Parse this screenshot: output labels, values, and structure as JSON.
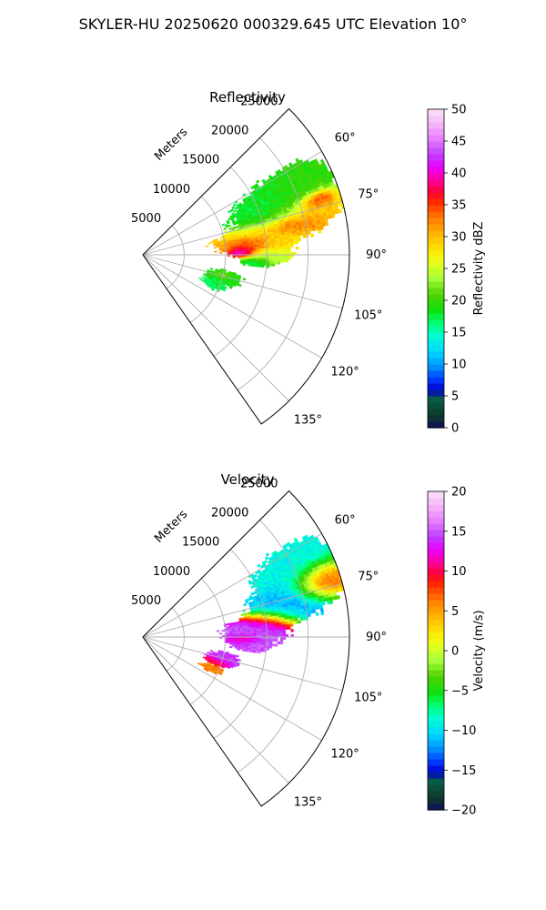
{
  "figure": {
    "suptitle": "SKYLER-HU  20250620  000329.645 UTC Elevation 10°"
  },
  "chart_data": [
    {
      "type": "heatmap",
      "title": "Reflectivity",
      "projection": "polar-sector",
      "azimuth_range_deg": [
        45,
        145
      ],
      "range_max_m": 25000,
      "range_label": "Meters",
      "range_ticks": [
        5000,
        10000,
        15000,
        20000,
        25000
      ],
      "range_tick_labels": [
        "5000",
        "10000",
        "15000",
        "20000",
        "25000"
      ],
      "azimuth_ticks": [
        60,
        75,
        90,
        105,
        120,
        135
      ],
      "azimuth_tick_labels": [
        "60°",
        "75°",
        "90°",
        "105°",
        "120°",
        "135°"
      ],
      "grid": true,
      "colorbar": {
        "label": "Reflectivity dBZ",
        "min": 0,
        "max": 50,
        "ticks": [
          0,
          5,
          10,
          15,
          20,
          25,
          30,
          35,
          40,
          45,
          50
        ],
        "tick_labels": [
          "0",
          "5",
          "10",
          "15",
          "20",
          "25",
          "30",
          "35",
          "40",
          "45",
          "50"
        ]
      },
      "features": [
        {
          "az": 69,
          "r": 17000,
          "saz": 9,
          "sr": 5000,
          "v": 18
        },
        {
          "az": 66,
          "r": 20500,
          "saz": 6,
          "sr": 3500,
          "v": 20
        },
        {
          "az": 74,
          "r": 21000,
          "saz": 4,
          "sr": 3000,
          "v": 32
        },
        {
          "az": 78,
          "r": 18500,
          "saz": 3,
          "sr": 3000,
          "v": 37
        },
        {
          "az": 72,
          "r": 22000,
          "saz": 2,
          "sr": 1500,
          "v": 44
        },
        {
          "az": 82,
          "r": 13500,
          "saz": 6,
          "sr": 4500,
          "v": 30
        },
        {
          "az": 84,
          "r": 12500,
          "saz": 3,
          "sr": 2000,
          "v": 38
        },
        {
          "az": 88,
          "r": 12000,
          "saz": 2.5,
          "sr": 1300,
          "v": 45
        },
        {
          "az": 90,
          "r": 15000,
          "saz": 3,
          "sr": 2500,
          "v": 24
        },
        {
          "az": 93,
          "r": 13500,
          "saz": 2,
          "sr": 1500,
          "v": 17
        },
        {
          "az": 105,
          "r": 10000,
          "saz": 4,
          "sr": 2000,
          "v": 19
        },
        {
          "az": 104,
          "r": 9800,
          "saz": 1.5,
          "sr": 800,
          "v": 24
        },
        {
          "az": 112,
          "r": 9000,
          "saz": 3,
          "sr": 1300,
          "v": 17
        }
      ]
    },
    {
      "type": "heatmap",
      "title": "Velocity",
      "projection": "polar-sector",
      "azimuth_range_deg": [
        45,
        145
      ],
      "range_max_m": 25000,
      "range_label": "Meters",
      "range_ticks": [
        5000,
        10000,
        15000,
        20000,
        25000
      ],
      "range_tick_labels": [
        "5000",
        "10000",
        "15000",
        "20000",
        "25000"
      ],
      "azimuth_ticks": [
        60,
        75,
        90,
        105,
        120,
        135
      ],
      "azimuth_tick_labels": [
        "60°",
        "75°",
        "90°",
        "105°",
        "120°",
        "135°"
      ],
      "grid": true,
      "colorbar": {
        "label": "Velocity (m/s)",
        "min": -20,
        "max": 20,
        "ticks": [
          -20,
          -15,
          -10,
          -5,
          0,
          5,
          10,
          15,
          20
        ],
        "tick_labels": [
          "−20",
          "−15",
          "−10",
          "−5",
          "0",
          "5",
          "10",
          "15",
          "20"
        ]
      },
      "features": [
        {
          "az": 66,
          "r": 20000,
          "saz": 8,
          "sr": 5000,
          "v": -9
        },
        {
          "az": 76,
          "r": 18000,
          "saz": 6,
          "sr": 4000,
          "v": -12
        },
        {
          "az": 72,
          "r": 22500,
          "saz": 4,
          "sr": 2500,
          "v": 14
        },
        {
          "az": 86,
          "r": 13500,
          "saz": 6,
          "sr": 3500,
          "v": 15
        },
        {
          "az": 91,
          "r": 12000,
          "saz": 2.5,
          "sr": 1500,
          "v": 10
        },
        {
          "az": 94,
          "r": 13000,
          "saz": 3,
          "sr": 2000,
          "v": 15
        },
        {
          "az": 104,
          "r": 10000,
          "saz": 3.5,
          "sr": 1800,
          "v": 14
        },
        {
          "az": 108,
          "r": 9000,
          "saz": 2,
          "sr": 1200,
          "v": 10
        },
        {
          "az": 114,
          "r": 9000,
          "saz": 2.5,
          "sr": 1400,
          "v": 6
        }
      ]
    }
  ]
}
